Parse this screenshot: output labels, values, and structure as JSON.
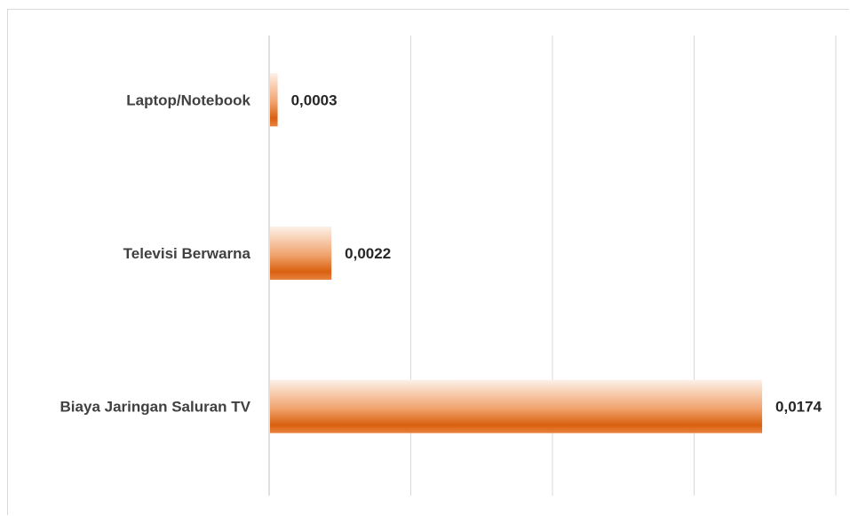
{
  "chart_data": {
    "type": "bar",
    "orientation": "horizontal",
    "categories": [
      "Laptop/Notebook",
      "Televisi Berwarna",
      "Biaya Jaringan Saluran TV"
    ],
    "values": [
      0.0003,
      0.0022,
      0.0174
    ],
    "value_labels": [
      "0,0003",
      "0,0022",
      "0,0174"
    ],
    "xlim": [
      0,
      0.02
    ],
    "grid": true,
    "legend": "none",
    "bar_color": "#e46c1a",
    "bar_color_light": "#fbe3d2"
  }
}
